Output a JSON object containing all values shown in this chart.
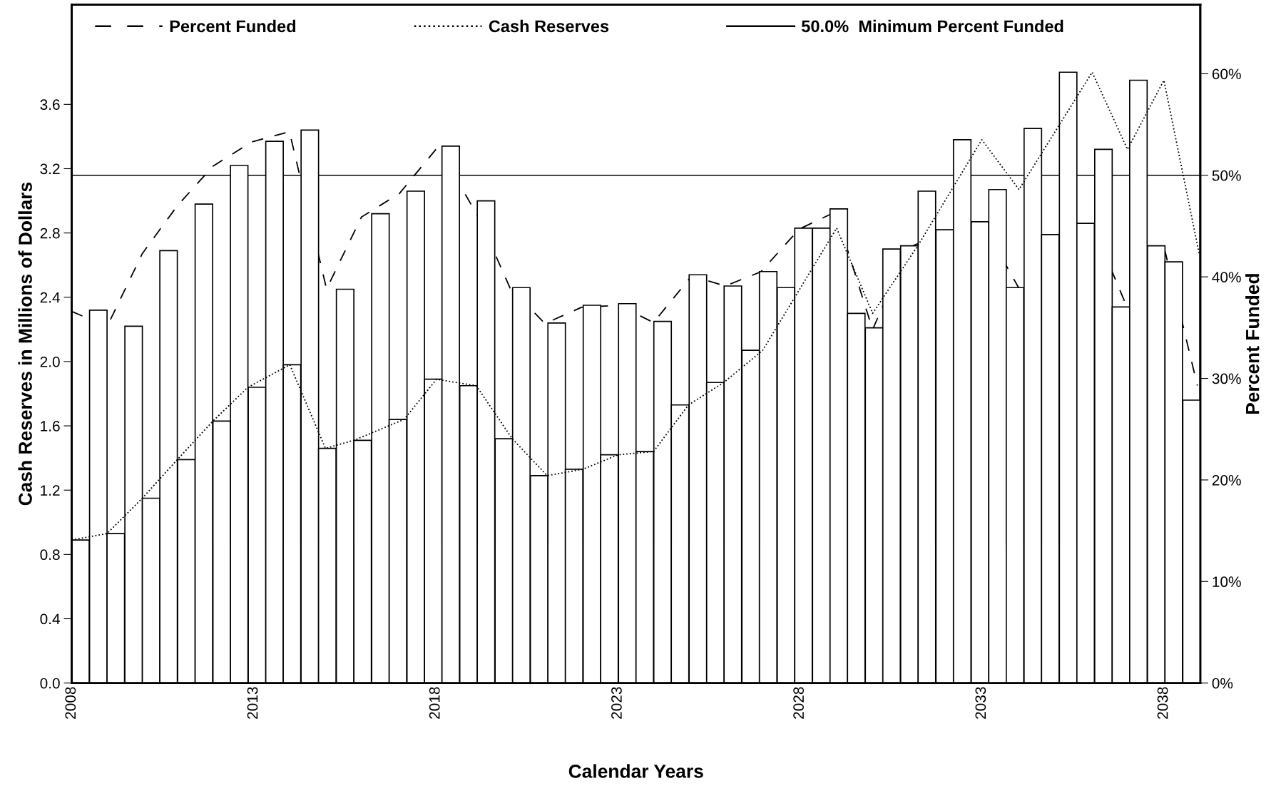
{
  "chart_data": {
    "type": "bar",
    "xlabel": "Calendar Years",
    "ylabel": "Cash Reserves in Millions of Dollars",
    "y2label": "Percent Funded",
    "xlim": [
      2008,
      2039
    ],
    "xticks": [
      2008,
      2013,
      2018,
      2023,
      2028,
      2033,
      2038
    ],
    "ylim": [
      0,
      4.22
    ],
    "yticks": [
      {
        "value": 0,
        "label": "0.0"
      },
      0.4,
      0.8,
      1.2,
      1.6,
      {
        "value": 2,
        "label": "2.0"
      },
      2.4,
      2.8,
      3.2,
      3.6
    ],
    "y2lim": [
      0,
      66.8
    ],
    "y2ticks": [
      {
        "value": 0,
        "label": "0%"
      },
      {
        "value": 10,
        "label": "10%"
      },
      {
        "value": 20,
        "label": "20%"
      },
      {
        "value": 30,
        "label": "30%"
      },
      {
        "value": 40,
        "label": "40%"
      },
      {
        "value": 50,
        "label": "50%"
      },
      {
        "value": 60,
        "label": "60%"
      }
    ],
    "grid": false,
    "legend": "top",
    "series": [
      {
        "color": "#ffffff",
        "x": [
          2008.24,
          2008.73,
          2009.21,
          2009.7,
          2010.18,
          2010.66,
          2011.15,
          2011.63,
          2012.12,
          2012.6,
          2013.09,
          2013.57,
          2014.05,
          2014.54,
          2015.02,
          2015.51,
          2015.99,
          2016.48,
          2016.96,
          2017.45,
          2017.93,
          2018.41,
          2018.9,
          2019.38,
          2019.87,
          2020.35,
          2020.84,
          2021.32,
          2021.8,
          2022.29,
          2022.77,
          2023.26,
          2023.74,
          2024.23,
          2024.71,
          2025.2,
          2025.68,
          2026.16,
          2026.65,
          2027.13,
          2027.62,
          2028.1,
          2028.59,
          2029.07,
          2029.55,
          2030.04,
          2030.52,
          2031.01,
          2031.49,
          2031.98,
          2032.46,
          2032.95,
          2033.43,
          2033.91,
          2034.4,
          2034.88,
          2035.37,
          2035.85,
          2036.34,
          2036.82,
          2037.3,
          2037.79,
          2038.27,
          2038.76
        ],
        "values": [
          0.89,
          2.32,
          0.93,
          2.22,
          1.15,
          2.69,
          1.39,
          2.98,
          1.63,
          3.22,
          1.84,
          3.37,
          1.98,
          3.44,
          1.46,
          2.45,
          1.51,
          2.92,
          1.64,
          3.06,
          1.89,
          3.34,
          1.85,
          3.0,
          1.52,
          2.46,
          1.29,
          2.24,
          1.33,
          2.35,
          1.42,
          2.36,
          1.44,
          2.25,
          1.73,
          2.54,
          1.87,
          2.47,
          2.07,
          2.56,
          2.46,
          2.83,
          2.83,
          2.95,
          2.3,
          2.21,
          2.7,
          2.72,
          3.06,
          2.82,
          3.38,
          2.87,
          3.07,
          2.46,
          3.45,
          2.79,
          3.8,
          2.86,
          3.32,
          2.34,
          3.75,
          2.72,
          2.62,
          1.76
        ]
      },
      {
        "type": "line",
        "name": "Percent Funded",
        "axis": "y2",
        "color": "#000000",
        "line_style": "dashed",
        "x": [
          2008.0,
          2008.97,
          2009.94,
          2010.9,
          2011.88,
          2012.95,
          2013.98,
          2015.0,
          2015.96,
          2017.0,
          2018.06,
          2019.2,
          2020.04,
          2021.0,
          2022.0,
          2023.04,
          2023.98,
          2025.03,
          2025.95,
          2026.93,
          2027.98,
          2028.98,
          2030.0,
          2030.95,
          2031.94,
          2033.0,
          2034.03,
          2035.02,
          2036.04,
          2036.99,
          2038.0,
          2038.92
        ],
        "values": [
          36.6,
          35.1,
          42.3,
          47.0,
          50.9,
          53.3,
          54.3,
          38.8,
          45.9,
          48.2,
          52.8,
          45.7,
          38.9,
          35.4,
          37.0,
          37.2,
          35.5,
          40.1,
          39.1,
          40.5,
          44.7,
          46.4,
          34.8,
          42.8,
          44.4,
          45.4,
          38.8,
          44.1,
          45.1,
          37.0,
          43.0,
          29.3
        ]
      },
      {
        "type": "line",
        "name": "Cash Reserves",
        "color": "#000000",
        "line_style": "dotted",
        "x": [
          2008.0,
          2008.97,
          2009.94,
          2010.9,
          2011.88,
          2012.84,
          2013.99,
          2014.97,
          2015.75,
          2017.13,
          2018.02,
          2019.11,
          2020.1,
          2021.06,
          2022.04,
          2023.01,
          2023.98,
          2024.94,
          2025.91,
          2026.98,
          2029.01,
          2030.0,
          2031.24,
          2033.0,
          2034.02,
          2036.03,
          2037.0,
          2038.0,
          2038.97
        ],
        "values": [
          0.89,
          0.93,
          1.15,
          1.39,
          1.63,
          1.84,
          1.98,
          1.46,
          1.51,
          1.64,
          1.89,
          1.85,
          1.52,
          1.29,
          1.33,
          1.42,
          1.44,
          1.73,
          1.87,
          2.07,
          2.83,
          2.3,
          2.72,
          3.38,
          3.07,
          3.8,
          3.32,
          3.75,
          2.67
        ]
      }
    ],
    "ref_lines": [
      {
        "axis": "y2",
        "value": 50,
        "label": "50.0%  Minimum Percent Funded",
        "color": "#000000",
        "line_style": "solid"
      }
    ]
  }
}
